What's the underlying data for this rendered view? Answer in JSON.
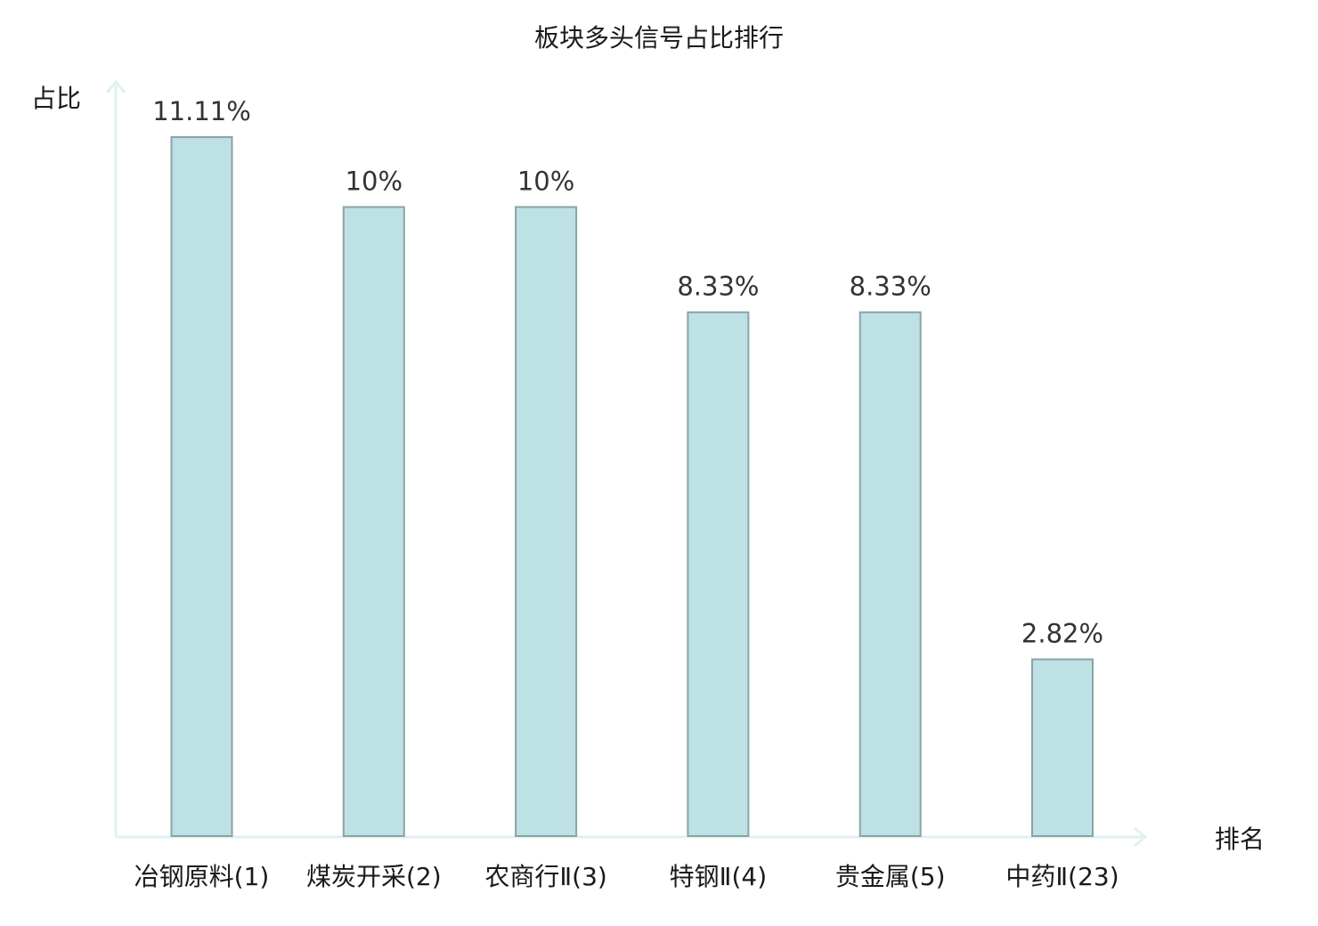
{
  "chart_data": {
    "type": "bar",
    "title": "板块多头信号占比排行",
    "xlabel": "排名",
    "ylabel": "占比",
    "categories": [
      "冶钢原料(1)",
      "煤炭开采(2)",
      "农商行Ⅱ(3)",
      "特钢Ⅱ(4)",
      "贵金属(5)",
      "中药Ⅱ(23)"
    ],
    "values": [
      11.11,
      10,
      10,
      8.33,
      8.33,
      2.82
    ],
    "value_labels": [
      "11.11%",
      "10%",
      "10%",
      "8.33%",
      "8.33%",
      "2.82%"
    ],
    "highlight_index": 5,
    "ylim": [
      0,
      11.11
    ],
    "grid": false,
    "legend": "none",
    "colors": {
      "bar_fill": "#bde1e4",
      "bar_stroke": "#8aa3a6",
      "axis": "#dff2ef",
      "highlight_text": "#e0201c",
      "text": "#1a1a1a",
      "value_text": "#333333"
    }
  }
}
